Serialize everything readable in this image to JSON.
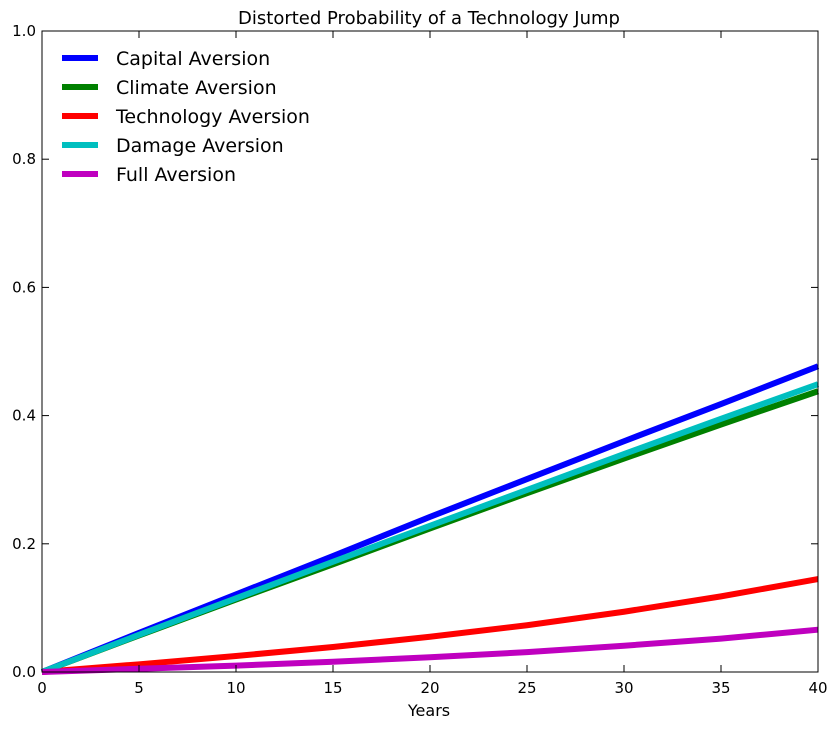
{
  "chart_data": {
    "type": "line",
    "title": "Distorted Probability of a Technology Jump",
    "xlabel": "Years",
    "ylabel": "",
    "xlim": [
      0,
      40
    ],
    "ylim": [
      0,
      1
    ],
    "xticks": [
      0,
      5,
      10,
      15,
      20,
      25,
      30,
      35,
      40
    ],
    "xtick_labels": [
      "0",
      "5",
      "10",
      "15",
      "20",
      "25",
      "30",
      "35",
      "40"
    ],
    "yticks": [
      0,
      0.2,
      0.4,
      0.6,
      0.8,
      1.0
    ],
    "ytick_labels": [
      "0.0",
      "0.2",
      "0.4",
      "0.6",
      "0.8",
      "1.0"
    ],
    "grid": false,
    "legend_position": "top-left",
    "x": [
      0,
      5,
      10,
      15,
      20,
      25,
      30,
      35,
      40
    ],
    "series": [
      {
        "name": "Capital Aversion",
        "color": "#0000ff",
        "values": [
          0,
          0.061,
          0.121,
          0.181,
          0.242,
          0.301,
          0.36,
          0.418,
          0.477
        ]
      },
      {
        "name": "Climate Aversion",
        "color": "#008000",
        "values": [
          0,
          0.057,
          0.113,
          0.168,
          0.224,
          0.279,
          0.333,
          0.386,
          0.438
        ]
      },
      {
        "name": "Technology Aversion",
        "color": "#ff0000",
        "values": [
          0,
          0.012,
          0.025,
          0.039,
          0.055,
          0.073,
          0.094,
          0.118,
          0.145
        ]
      },
      {
        "name": "Damage Aversion",
        "color": "#00bfbf",
        "values": [
          0,
          0.058,
          0.115,
          0.172,
          0.228,
          0.284,
          0.34,
          0.395,
          0.449
        ]
      },
      {
        "name": "Full Aversion",
        "color": "#bf00bf",
        "values": [
          0,
          0.005,
          0.01,
          0.016,
          0.023,
          0.031,
          0.041,
          0.052,
          0.066
        ]
      }
    ]
  }
}
